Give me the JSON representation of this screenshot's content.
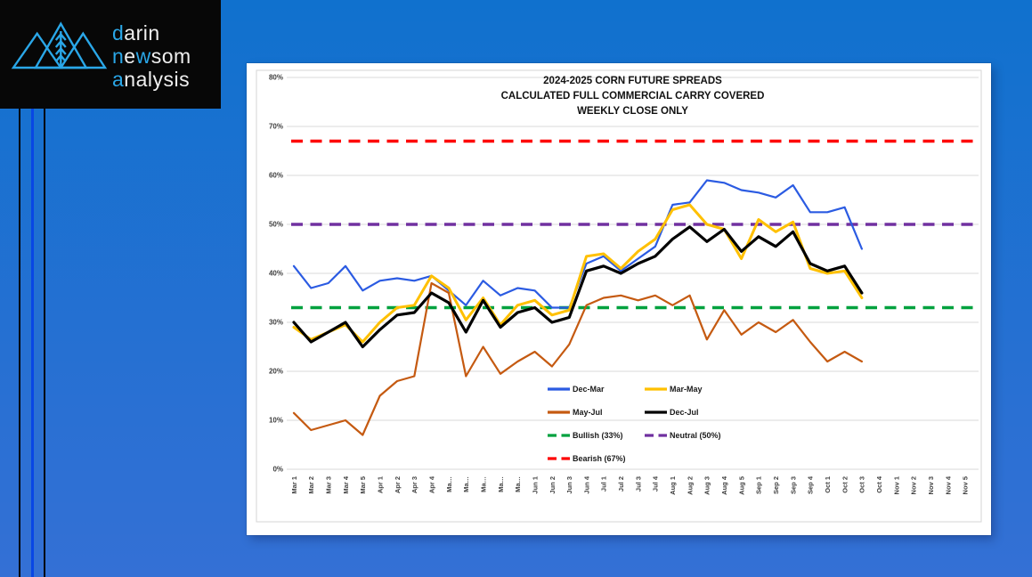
{
  "theme": {
    "background_top": "#1071CE",
    "background_bottom": "#3470D5",
    "logo_bg": "#070707",
    "logo_blue": "#2AA7E8",
    "logo_white": "#EFEFEF",
    "stripe_blue": "#0846E4",
    "panel_bg": "#FFFFFF",
    "grid_color": "#D9D9D9",
    "axis_label_color": "#404040",
    "title_color": "#111111"
  },
  "logo": {
    "icon": "mountains-wheat-icon",
    "lines": [
      {
        "segments": [
          {
            "text": "d",
            "color": "#2AA7E8"
          },
          {
            "text": "arin",
            "color": "#EFEFEF"
          }
        ]
      },
      {
        "segments": [
          {
            "text": "n",
            "color": "#2AA7E8"
          },
          {
            "text": "e",
            "color": "#EFEFEF"
          },
          {
            "text": "w",
            "color": "#2AA7E8"
          },
          {
            "text": "som",
            "color": "#EFEFEF"
          }
        ]
      },
      {
        "segments": [
          {
            "text": "a",
            "color": "#2AA7E8"
          },
          {
            "text": "nalysis",
            "color": "#EFEFEF"
          }
        ]
      }
    ]
  },
  "chart_data": {
    "type": "line",
    "title_lines": [
      "2024-2025 CORN FUTURE SPREADS",
      "CALCULATED FULL COMMERCIAL CARRY COVERED",
      "WEEKLY CLOSE ONLY"
    ],
    "categories": [
      "Mar 1",
      "Mar 2",
      "Mar 3",
      "Mar 4",
      "Mar 5",
      "Apr 1",
      "Apr 2",
      "Apr 3",
      "Apr 4",
      "Ma…",
      "Ma…",
      "Ma…",
      "Ma…",
      "Ma…",
      "Jun 1",
      "Jun 2",
      "Jun 3",
      "Jun 4",
      "Jul 1",
      "Jul 2",
      "Jul 3",
      "Jul 4",
      "Aug 1",
      "Aug 2",
      "Aug 3",
      "Aug 4",
      "Aug 5",
      "Sep 1",
      "Sep 2",
      "Sep 3",
      "Sep 4",
      "Oct 1",
      "Oct 2",
      "Oct 3",
      "Oct 4",
      "Nov 1",
      "Nov 2",
      "Nov 3",
      "Nov 4",
      "Nov 5"
    ],
    "series": [
      {
        "name": "Dec-Mar",
        "color": "#2B5BE2",
        "width": 2.2,
        "values": [
          41.5,
          37,
          38,
          41.5,
          36.5,
          38.5,
          39,
          38.5,
          39.5,
          36.5,
          33.5,
          38.5,
          35.5,
          37,
          36.5,
          33,
          33,
          42,
          43.5,
          40.5,
          43,
          45.5,
          54,
          54.5,
          59,
          58.5,
          57,
          56.5,
          55.5,
          58,
          52.5,
          52.5,
          53.5,
          45
        ]
      },
      {
        "name": "Mar-May",
        "color": "#FFC000",
        "width": 3,
        "values": [
          29,
          26.5,
          28,
          29.5,
          26,
          30,
          33,
          33.5,
          39.5,
          37,
          30.5,
          35,
          29.5,
          33.5,
          34.5,
          31.5,
          32.5,
          43.5,
          44,
          41,
          44.5,
          47,
          53,
          54,
          50,
          49,
          43,
          51,
          48.5,
          50.5,
          41,
          40,
          40.5,
          35
        ]
      },
      {
        "name": "May-Jul",
        "color": "#C55A11",
        "width": 2.2,
        "values": [
          11.5,
          8,
          9,
          10,
          7,
          15,
          18,
          19,
          38,
          36,
          19,
          25,
          19.5,
          22,
          24,
          21,
          25.5,
          33.5,
          35,
          35.5,
          34.5,
          35.5,
          33.5,
          35.5,
          26.5,
          32.5,
          27.5,
          30,
          28,
          30.5,
          26,
          22,
          24,
          22
        ]
      },
      {
        "name": "Dec-Jul",
        "color": "#000000",
        "width": 3.2,
        "values": [
          30,
          26,
          28,
          30,
          25,
          28.5,
          31.5,
          32,
          36,
          34,
          28,
          34.5,
          29,
          32,
          33,
          30,
          31,
          40.5,
          41.5,
          40,
          42,
          43.5,
          47,
          49.5,
          46.5,
          49,
          44.5,
          47.5,
          45.5,
          48.5,
          42,
          40.5,
          41.5,
          36
        ]
      }
    ],
    "thresholds": [
      {
        "name": "Bullish (33%)",
        "value": 33,
        "color": "#00A13E"
      },
      {
        "name": "Neutral (50%)",
        "value": 50,
        "color": "#7030A0"
      },
      {
        "name": "Bearish (67%)",
        "value": 67,
        "color": "#FE0000"
      }
    ],
    "ylim": [
      0,
      80
    ],
    "ytick_step": 10,
    "ytick_labels": [
      "0%",
      "10%",
      "20%",
      "30%",
      "40%",
      "50%",
      "60%",
      "70%",
      "80%"
    ],
    "grid": true,
    "legend_position": "inside-bottom-center"
  }
}
